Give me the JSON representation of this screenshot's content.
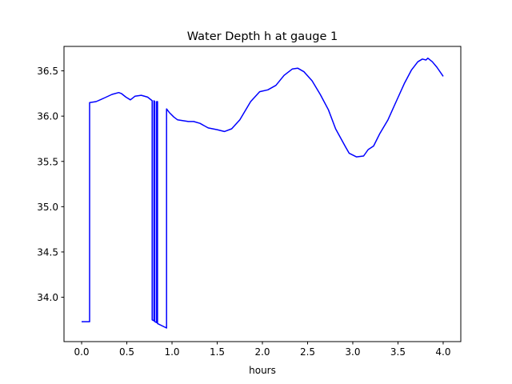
{
  "chart_data": {
    "type": "line",
    "title": "Water Depth h at gauge 1",
    "xlabel": "hours",
    "ylabel": "",
    "xlim": [
      -0.195,
      4.195
    ],
    "ylim": [
      33.51,
      36.77
    ],
    "xticks": [
      0.0,
      0.5,
      1.0,
      1.5,
      2.0,
      2.5,
      3.0,
      3.5,
      4.0
    ],
    "xtick_labels": [
      "0.0",
      "0.5",
      "1.0",
      "1.5",
      "2.0",
      "2.5",
      "3.0",
      "3.5",
      "4.0"
    ],
    "yticks": [
      34.0,
      34.5,
      35.0,
      35.5,
      36.0,
      36.5
    ],
    "ytick_labels": [
      "34.0",
      "34.5",
      "35.0",
      "35.5",
      "36.0",
      "36.5"
    ],
    "grid": false,
    "series": [
      {
        "name": "h",
        "color": "#0000ff",
        "x": [
          0,
          0.088,
          0.088,
          0.16,
          0.25,
          0.336,
          0.41,
          0.44,
          0.49,
          0.54,
          0.59,
          0.66,
          0.73,
          0.78,
          0.78,
          0.8,
          0.8,
          0.81,
          0.81,
          0.83,
          0.83,
          0.84,
          0.84,
          0.94,
          0.94,
          0.97,
          1.02,
          1.06,
          1.18,
          1.24,
          1.31,
          1.4,
          1.5,
          1.58,
          1.66,
          1.75,
          1.87,
          1.97,
          2.06,
          2.15,
          2.24,
          2.33,
          2.39,
          2.46,
          2.55,
          2.64,
          2.73,
          2.81,
          2.92,
          2.96,
          3.04,
          3.12,
          3.17,
          3.23,
          3.3,
          3.39,
          3.48,
          3.57,
          3.65,
          3.72,
          3.77,
          3.81,
          3.83,
          3.88,
          3.93,
          4.0
        ],
        "y": [
          33.73,
          33.73,
          36.15,
          36.16,
          36.2,
          36.24,
          36.26,
          36.25,
          36.21,
          36.18,
          36.22,
          36.23,
          36.21,
          36.17,
          33.75,
          33.74,
          36.17,
          36.16,
          33.73,
          33.72,
          36.16,
          36.16,
          33.71,
          33.66,
          36.08,
          36.04,
          35.99,
          35.96,
          35.94,
          35.94,
          35.92,
          35.87,
          35.85,
          35.83,
          35.86,
          35.96,
          36.16,
          36.27,
          36.29,
          36.34,
          36.45,
          36.52,
          36.53,
          36.49,
          36.39,
          36.24,
          36.07,
          35.86,
          35.66,
          35.59,
          35.55,
          35.56,
          35.63,
          35.67,
          35.81,
          35.96,
          36.16,
          36.36,
          36.51,
          36.6,
          36.63,
          36.62,
          36.64,
          36.6,
          36.54,
          36.44
        ]
      }
    ]
  }
}
